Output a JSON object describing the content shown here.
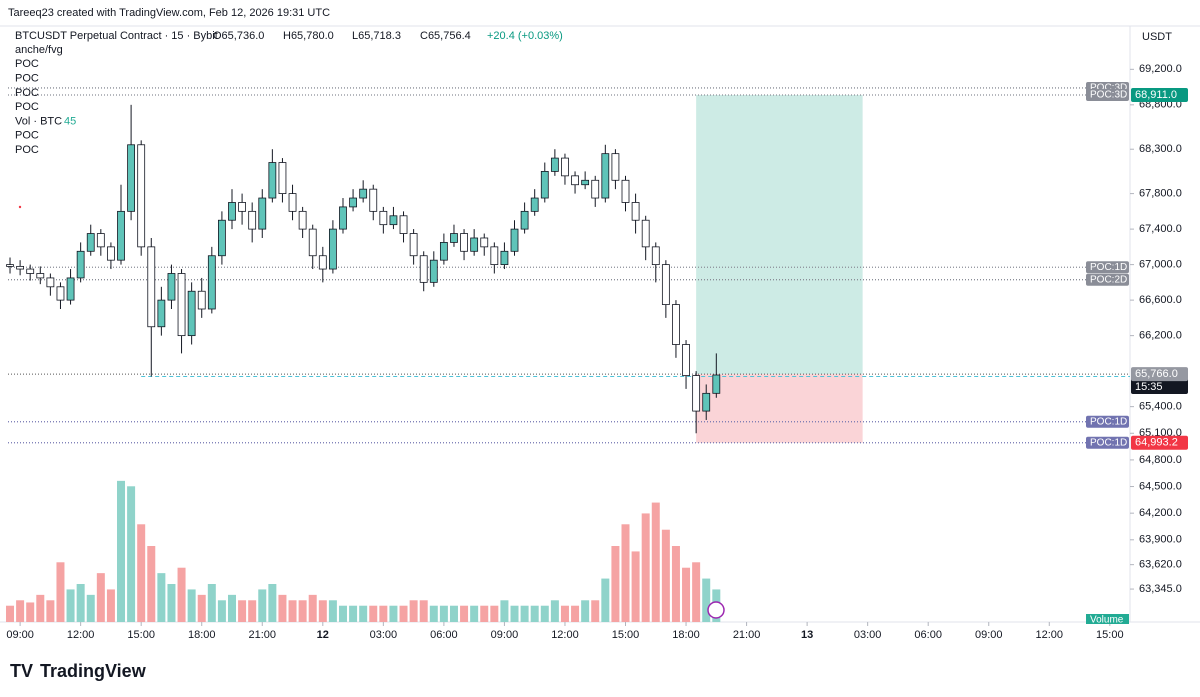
{
  "header": {
    "credit": "Tareeq23 created with TradingView.com, Feb 12, 2026 19:31 UTC",
    "symbol": "BTCUSDT Perpetual Contract · 15 · Bybit",
    "open": "O65,736.0",
    "high": "H65,780.0",
    "low": "L65,718.3",
    "close": "C65,756.4",
    "change": "+20.4 (+0.03%)",
    "currency": "USDT",
    "logo": "TradingView"
  },
  "indicators": [
    {
      "name": "anche/fvg"
    },
    {
      "name": "POC"
    },
    {
      "name": "POC"
    },
    {
      "name": "POC"
    },
    {
      "name": "POC"
    },
    {
      "name": "Vol · BTC",
      "value": "45"
    },
    {
      "name": "POC"
    },
    {
      "name": "POC"
    }
  ],
  "chart_data": {
    "type": "candlestick",
    "x": [
      -0.5,
      0,
      0.5,
      1,
      1.5,
      2,
      2.5,
      3,
      3.5,
      4,
      4.5,
      5,
      5.5,
      6,
      6.5,
      7,
      7.5,
      8,
      8.5,
      9,
      9.5,
      10,
      10.5,
      11,
      11.5,
      12,
      12.5,
      13,
      13.5,
      14,
      14.5,
      15,
      15.5,
      16,
      16.5,
      17,
      17.5,
      18,
      18.5,
      19,
      19.5,
      20,
      20.5,
      21,
      21.5,
      22,
      22.5,
      23,
      23.5,
      24,
      24.5,
      25,
      25.5,
      26,
      26.5,
      27,
      27.5,
      28,
      28.5,
      29,
      29.5,
      30,
      30.5,
      31,
      31.5,
      32,
      32.5,
      33,
      33.5,
      34,
      34.5
    ],
    "open": [
      67000,
      66980,
      66950,
      66900,
      66850,
      66750,
      66600,
      66850,
      67150,
      67350,
      67200,
      67050,
      67600,
      68350,
      67200,
      66300,
      66600,
      66900,
      66200,
      66700,
      66500,
      67100,
      67500,
      67700,
      67600,
      67400,
      67750,
      68150,
      67800,
      67600,
      67400,
      67100,
      66950,
      67400,
      67650,
      67750,
      67850,
      67600,
      67450,
      67550,
      67350,
      67100,
      66800,
      67050,
      67250,
      67350,
      67150,
      67300,
      67200,
      67000,
      67150,
      67400,
      67600,
      67750,
      68050,
      68200,
      68000,
      67900,
      67950,
      67750,
      68250,
      67950,
      67700,
      67500,
      67200,
      67000,
      66550,
      66100,
      65750,
      65350,
      65550
    ],
    "high": [
      67080,
      67050,
      67000,
      66980,
      66900,
      66800,
      66950,
      67250,
      67450,
      67400,
      67250,
      67900,
      68800,
      68400,
      67300,
      66750,
      67000,
      66950,
      66800,
      66850,
      67200,
      67600,
      67850,
      67800,
      67700,
      67850,
      68300,
      68200,
      67900,
      67650,
      67450,
      67200,
      67500,
      67750,
      67850,
      67950,
      67900,
      67650,
      67650,
      67600,
      67400,
      67150,
      67150,
      67350,
      67450,
      67400,
      67400,
      67350,
      67250,
      67250,
      67500,
      67700,
      67850,
      68150,
      68300,
      68250,
      68050,
      68050,
      68000,
      68350,
      68300,
      68000,
      67800,
      67550,
      67250,
      67050,
      66600,
      66150,
      65800,
      65650,
      66000
    ],
    "low": [
      66900,
      66880,
      66820,
      66780,
      66650,
      66500,
      66550,
      66800,
      67100,
      67100,
      66950,
      67000,
      67500,
      67100,
      65740,
      66200,
      66500,
      66000,
      66100,
      66400,
      66450,
      67000,
      67400,
      67450,
      67250,
      67300,
      67700,
      67700,
      67500,
      67300,
      66950,
      66800,
      66900,
      67350,
      67600,
      67700,
      67500,
      67350,
      67400,
      67250,
      67000,
      66700,
      66750,
      67000,
      67200,
      67050,
      67100,
      67100,
      66900,
      66950,
      67100,
      67350,
      67550,
      67700,
      68000,
      67900,
      67800,
      67850,
      67650,
      67700,
      67850,
      67600,
      67350,
      67050,
      66800,
      66400,
      65950,
      65600,
      65100,
      65250,
      65500
    ],
    "close": [
      66980,
      66950,
      66900,
      66850,
      66750,
      66600,
      66850,
      67150,
      67350,
      67200,
      67050,
      67600,
      68350,
      67200,
      66300,
      66600,
      66900,
      66200,
      66700,
      66500,
      67100,
      67500,
      67700,
      67600,
      67400,
      67750,
      68150,
      67800,
      67600,
      67400,
      67100,
      66950,
      67400,
      67650,
      67750,
      67850,
      67600,
      67450,
      67550,
      67350,
      67100,
      66800,
      67050,
      67250,
      67350,
      67150,
      67300,
      67200,
      67000,
      67150,
      67400,
      67600,
      67750,
      68050,
      68200,
      68000,
      67900,
      67950,
      67750,
      68250,
      67950,
      67700,
      67500,
      67200,
      67000,
      66550,
      66100,
      65750,
      65350,
      65550,
      65756.4
    ],
    "volume": [
      150,
      200,
      180,
      250,
      200,
      550,
      300,
      350,
      250,
      450,
      300,
      1300,
      1250,
      900,
      700,
      450,
      350,
      500,
      300,
      250,
      350,
      200,
      250,
      200,
      200,
      300,
      350,
      250,
      200,
      200,
      250,
      200,
      200,
      150,
      150,
      150,
      150,
      150,
      150,
      150,
      200,
      200,
      150,
      150,
      150,
      150,
      150,
      150,
      150,
      200,
      150,
      150,
      150,
      150,
      200,
      150,
      150,
      200,
      200,
      400,
      700,
      900,
      650,
      1000,
      1100,
      850,
      700,
      500,
      550,
      400,
      300
    ],
    "volume_label": "Volume",
    "volume_ylim": [
      0,
      1400
    ],
    "up_color": "#5fc4b9",
    "down_color": "#ffffff",
    "volume_up_color": "#8fd3ca",
    "volume_down_color": "#f5a3a3",
    "xlim": [
      -0.6,
      55
    ],
    "xticks": [
      {
        "value": 0,
        "label": "09:00"
      },
      {
        "value": 3,
        "label": "12:00"
      },
      {
        "value": 6,
        "label": "15:00"
      },
      {
        "value": 9,
        "label": "18:00"
      },
      {
        "value": 12,
        "label": "21:00"
      },
      {
        "value": 15,
        "label": "12"
      },
      {
        "value": 18,
        "label": "03:00"
      },
      {
        "value": 21,
        "label": "06:00"
      },
      {
        "value": 24,
        "label": "09:00"
      },
      {
        "value": 27,
        "label": "12:00"
      },
      {
        "value": 30,
        "label": "15:00"
      },
      {
        "value": 33,
        "label": "18:00"
      },
      {
        "value": 36,
        "label": "21:00"
      },
      {
        "value": 39,
        "label": "13"
      },
      {
        "value": 42,
        "label": "03:00"
      },
      {
        "value": 45,
        "label": "06:00"
      },
      {
        "value": 48,
        "label": "09:00"
      },
      {
        "value": 51,
        "label": "12:00"
      },
      {
        "value": 54,
        "label": "15:00"
      }
    ],
    "ylim": [
      62974,
      69688
    ],
    "yticks": [
      {
        "value": 69200,
        "label": "69,200.0"
      },
      {
        "value": 68800,
        "label": "68,800.0"
      },
      {
        "value": 68300,
        "label": "68,300.0"
      },
      {
        "value": 67800,
        "label": "67,800.0"
      },
      {
        "value": 67400,
        "label": "67,400.0"
      },
      {
        "value": 67000,
        "label": "67,000.0"
      },
      {
        "value": 66600,
        "label": "66,600.0"
      },
      {
        "value": 66200,
        "label": "66,200.0"
      },
      {
        "value": 65400,
        "label": "65,400.0"
      },
      {
        "value": 65100,
        "label": "65,100.0"
      },
      {
        "value": 64800,
        "label": "64,800.0"
      },
      {
        "value": 64500,
        "label": "64,500.0"
      },
      {
        "value": 64200,
        "label": "64,200.0"
      },
      {
        "value": 63900,
        "label": "63,900.0"
      },
      {
        "value": 63620,
        "label": "63,620.0"
      },
      {
        "value": 63345,
        "label": "63,345.0"
      }
    ],
    "levels": [
      {
        "label": "POC:3D",
        "value": 68990,
        "color": "#8a8d97"
      },
      {
        "label": "POC:3D",
        "value": 68911,
        "color": "#8a8d97"
      },
      {
        "label": "POC:1D",
        "value": 66970,
        "color": "#8a8d97"
      },
      {
        "label": "POC:2D",
        "value": 66830,
        "color": "#8a8d97"
      },
      {
        "label": "POC:1D",
        "value": 65230,
        "color": "#7173b0"
      },
      {
        "label": "POC:1D",
        "value": 64993.2,
        "color": "#7173b0"
      }
    ],
    "ray": {
      "value": 65740,
      "x_start": 6,
      "color": "#4fc3d8"
    },
    "position": {
      "entry": 65766,
      "entry_label": "65,766.0",
      "target": 68911,
      "target_label": "68,911.0",
      "stop": 64993.2,
      "stop_label": "64,993.2",
      "x_start": 33.5,
      "x_end": 41.75,
      "target_color": "#cdebe5",
      "stop_color": "#fad4d7"
    },
    "countdown": "15:35"
  }
}
